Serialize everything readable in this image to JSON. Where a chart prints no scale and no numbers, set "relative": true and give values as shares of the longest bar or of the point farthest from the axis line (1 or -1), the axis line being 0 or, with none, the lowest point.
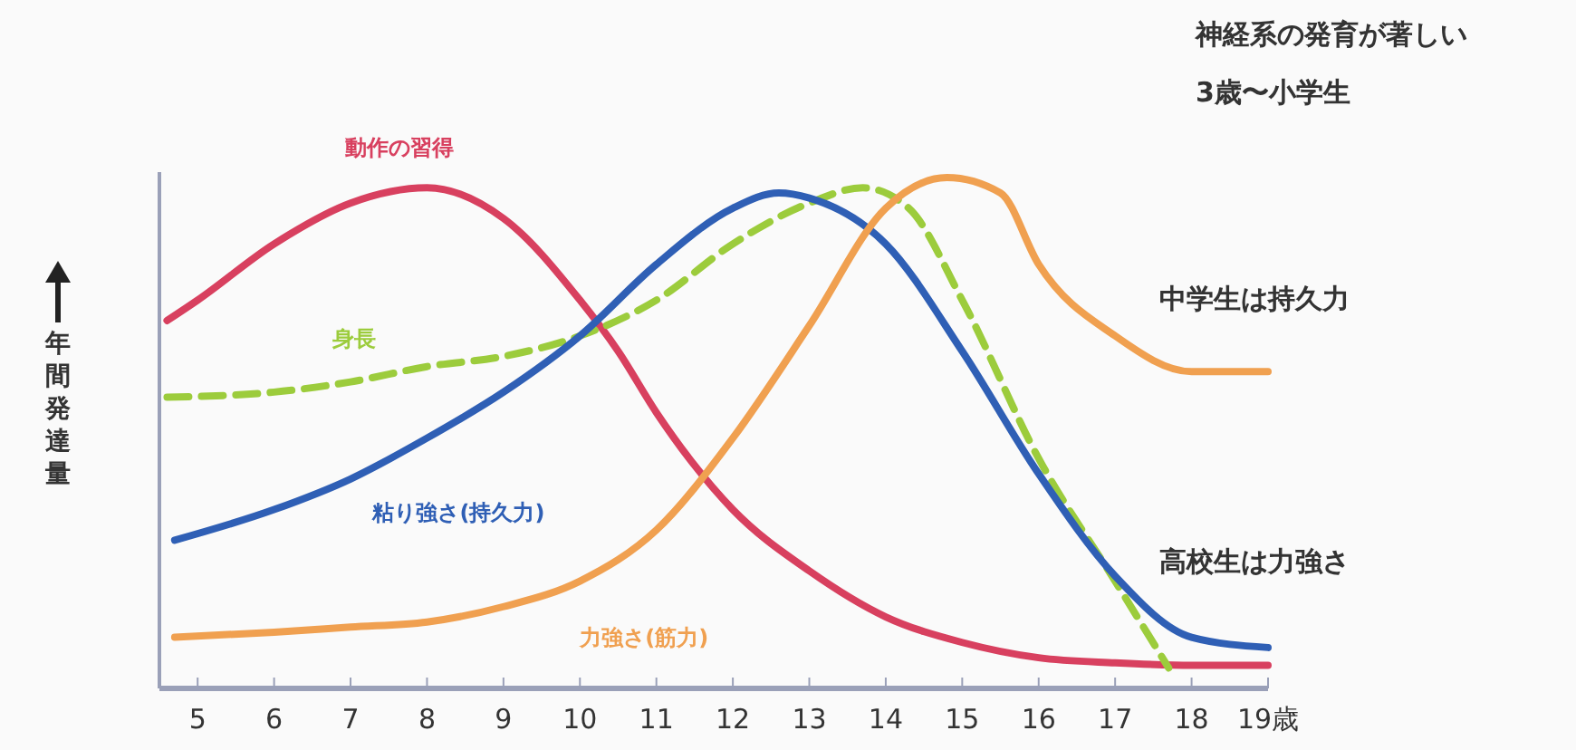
{
  "chart_data": {
    "type": "line",
    "relative": true,
    "ylabel": "年間発達量",
    "xlim": [
      4.5,
      19
    ],
    "xticks": [
      5,
      6,
      7,
      8,
      9,
      10,
      11,
      12,
      13,
      14,
      15,
      16,
      17,
      18,
      {
        "value": 19,
        "label": "19歳"
      }
    ],
    "grid": false,
    "annotations": [
      "神経系の発育が著しい",
      "3歳〜小学生",
      "中学生は持久力",
      "高校生は力強さ"
    ],
    "series": [
      {
        "name": "動作の習得",
        "color": "#d8405f",
        "line_style": "solid",
        "x": [
          4.6,
          5,
          6,
          7,
          8,
          9,
          10,
          10.5,
          11,
          12,
          13,
          14,
          15,
          16,
          17,
          18,
          19
        ],
        "values": [
          0.72,
          0.76,
          0.87,
          0.95,
          0.98,
          0.92,
          0.76,
          0.66,
          0.54,
          0.35,
          0.23,
          0.14,
          0.09,
          0.06,
          0.05,
          0.045,
          0.045
        ]
      },
      {
        "name": "身長",
        "color": "#9ccc3c",
        "line_style": "dashed",
        "x": [
          4.6,
          6,
          7,
          8,
          9,
          10,
          11,
          12,
          13,
          13.7,
          14.3,
          15,
          16,
          17,
          17.7
        ],
        "values": [
          0.57,
          0.58,
          0.6,
          0.63,
          0.65,
          0.69,
          0.76,
          0.87,
          0.95,
          0.98,
          0.94,
          0.76,
          0.45,
          0.21,
          0.04
        ]
      },
      {
        "name": "粘り強さ(持久力)",
        "color": "#2f5fb5",
        "line_style": "solid",
        "x": [
          4.7,
          6,
          7,
          8,
          9,
          10,
          11,
          12,
          12.6,
          13,
          14,
          15,
          16,
          17,
          18,
          19
        ],
        "values": [
          0.29,
          0.35,
          0.41,
          0.49,
          0.58,
          0.69,
          0.83,
          0.94,
          0.97,
          0.96,
          0.87,
          0.66,
          0.42,
          0.22,
          0.1,
          0.08
        ]
      },
      {
        "name": "力強さ(筋力)",
        "color": "#f0a050",
        "line_style": "solid",
        "x": [
          4.7,
          6,
          7,
          8,
          9,
          10,
          11,
          12,
          13,
          14,
          14.8,
          15.5,
          16,
          17,
          18,
          19
        ],
        "values": [
          0.1,
          0.11,
          0.12,
          0.13,
          0.16,
          0.21,
          0.31,
          0.49,
          0.71,
          0.94,
          1,
          0.97,
          0.83,
          0.69,
          0.62,
          0.62
        ]
      }
    ]
  }
}
